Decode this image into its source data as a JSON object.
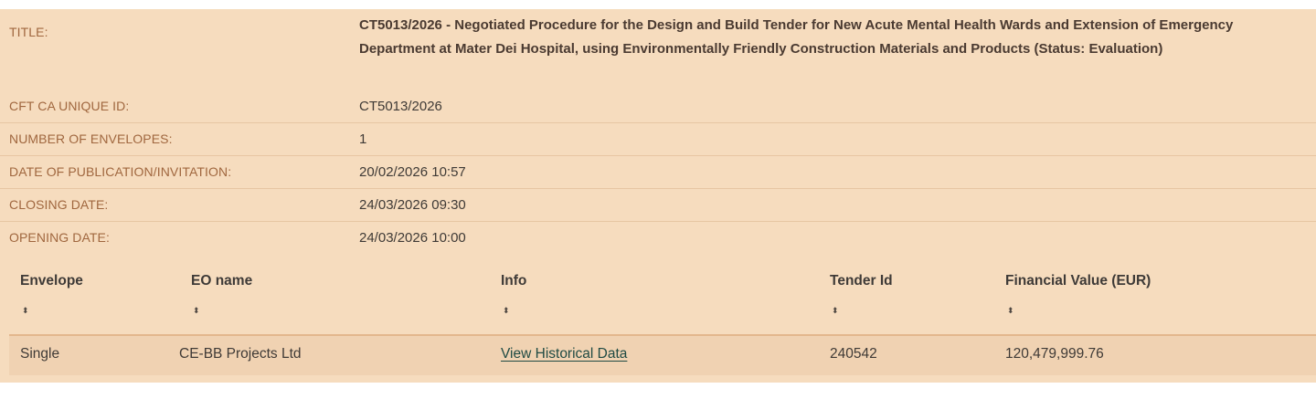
{
  "details": {
    "title_label": "TITLE:",
    "title_value": "CT5013/2026 - Negotiated Procedure for the Design and Build Tender for New Acute Mental Health Wards and Extension of Emergency Department at Mater Dei Hospital, using Environmentally Friendly Construction Materials and Products (Status: Evaluation)",
    "unique_id_label": "CFT CA UNIQUE ID:",
    "unique_id_value": "CT5013/2026",
    "envelopes_label": "NUMBER OF ENVELOPES:",
    "envelopes_value": "1",
    "publication_label": "DATE OF PUBLICATION/INVITATION:",
    "publication_value": "20/02/2026 10:57",
    "closing_label": "CLOSING DATE:",
    "closing_value": "24/03/2026 09:30",
    "opening_label": "OPENING DATE:",
    "opening_value": "24/03/2026 10:00"
  },
  "table": {
    "headers": [
      "Envelope",
      "EO name",
      "Info",
      "Tender Id",
      "Financial Value (EUR)"
    ],
    "sort_glyph": "⬍",
    "rows": [
      [
        "Single",
        "CE-BB Projects Ltd",
        "View Historical Data",
        "240542",
        "120,479,999.76"
      ]
    ]
  },
  "colors": {
    "panel_background": "#f6dcbe",
    "label_color": "#a0673f",
    "row_background": "#f0d2b2",
    "link_color": "#1f4a43"
  }
}
